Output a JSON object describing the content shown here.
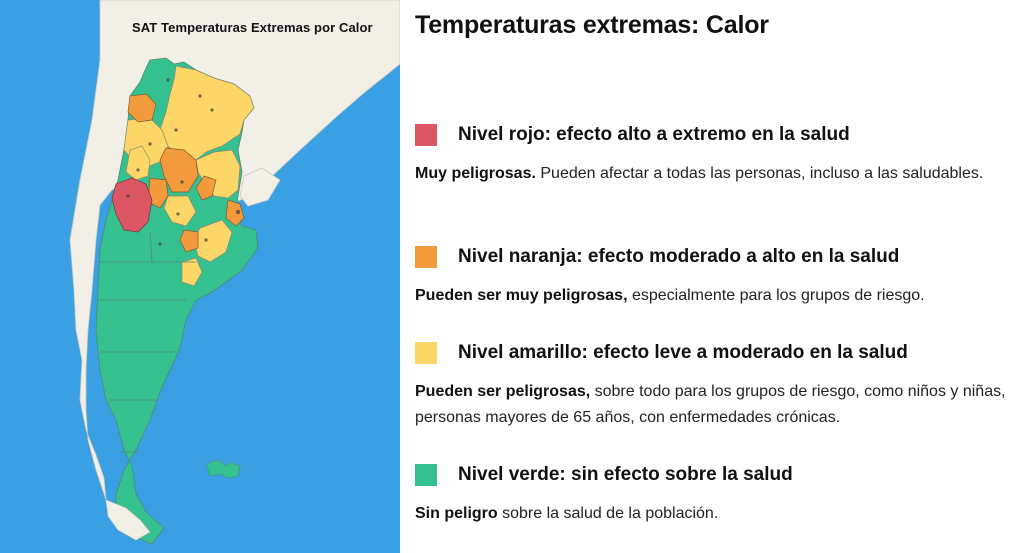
{
  "map": {
    "title": "SAT Temperaturas Extremas por Calor",
    "colors": {
      "sea": "#3aa0e4",
      "land": "#f1efe6",
      "border": "#6f6f6f"
    }
  },
  "panel": {
    "heading": "Temperaturas extremas: Calor",
    "levels": [
      {
        "color": "#dc5763",
        "title": "Nivel rojo: efecto alto a extremo en la salud",
        "desc_bold": "Muy peligrosas.",
        "desc_rest": " Pueden afectar a todas las personas, incluso a las saludables."
      },
      {
        "color": "#f29a3c",
        "title": "Nivel naranja: efecto moderado a alto en la salud",
        "desc_bold": "Pueden ser muy peligrosas,",
        "desc_rest": " especialmente para los grupos de riesgo."
      },
      {
        "color": "#fcd667",
        "title": "Nivel amarillo: efecto leve a moderado en la salud",
        "desc_bold": "Pueden ser peligrosas,",
        "desc_rest": " sobre todo para los grupos de riesgo, como niños y niñas, personas mayores de 65 años, con enfermedades crónicas."
      },
      {
        "color": "#35c08f",
        "title": "Nivel verde: sin efecto sobre la salud",
        "desc_bold": "Sin peligro",
        "desc_rest": " sobre la salud de la población."
      }
    ]
  }
}
